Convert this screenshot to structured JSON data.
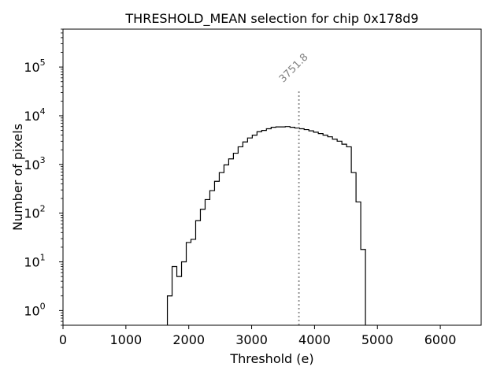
{
  "chart_data": {
    "type": "histogram",
    "title": "THRESHOLD_MEAN selection for chip 0x178d9",
    "xlabel": "Threshold (e)",
    "ylabel": "Number of pixels",
    "xlim": [
      0,
      6650
    ],
    "ylim": [
      0.5,
      600000
    ],
    "yscale": "log",
    "xticks": [
      0,
      1000,
      2000,
      3000,
      4000,
      5000,
      6000
    ],
    "xtick_labels": [
      "0",
      "1000",
      "2000",
      "3000",
      "4000",
      "5000",
      "6000"
    ],
    "yticks": [
      1,
      10,
      100,
      1000,
      10000,
      100000
    ],
    "ytick_labels": [
      {
        "base": "10",
        "exp": "0"
      },
      {
        "base": "10",
        "exp": "1"
      },
      {
        "base": "10",
        "exp": "2"
      },
      {
        "base": "10",
        "exp": "3"
      },
      {
        "base": "10",
        "exp": "4"
      },
      {
        "base": "10",
        "exp": "5"
      }
    ],
    "bin_start": 1660,
    "bin_width": 75,
    "counts": [
      2,
      8,
      5,
      10,
      25,
      29,
      70,
      120,
      190,
      290,
      450,
      680,
      980,
      1300,
      1700,
      2300,
      2900,
      3500,
      4000,
      4700,
      5000,
      5400,
      5800,
      5900,
      5900,
      6000,
      5800,
      5600,
      5400,
      5200,
      4900,
      4600,
      4300,
      4000,
      3700,
      3300,
      3000,
      2600,
      2300,
      680,
      170,
      18
    ],
    "marker": {
      "x": 3751.8,
      "label": "3751.8",
      "top_value": 35000,
      "color": "#888888"
    }
  }
}
